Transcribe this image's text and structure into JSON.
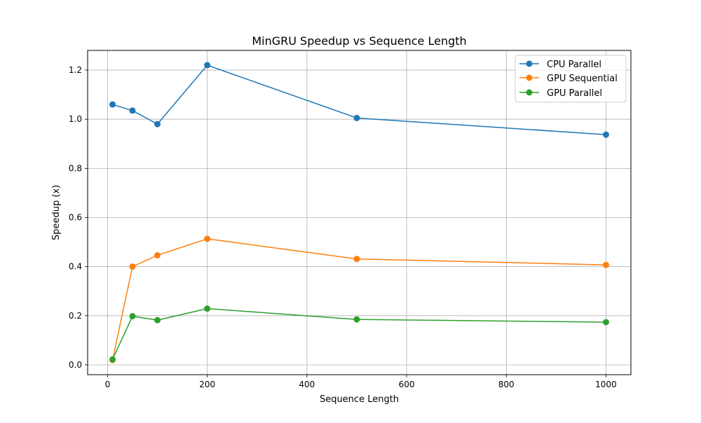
{
  "chart_data": {
    "type": "line",
    "title": "MinGRU Speedup vs Sequence Length",
    "xlabel": "Sequence Length",
    "ylabel": "Speedup (x)",
    "x": [
      10,
      50,
      100,
      200,
      500,
      1000
    ],
    "xlim": [
      -40,
      1050
    ],
    "ylim": [
      -0.04,
      1.28
    ],
    "xticks": [
      0,
      200,
      400,
      600,
      800,
      1000
    ],
    "xtick_labels": [
      "0",
      "200",
      "400",
      "600",
      "800",
      "1000"
    ],
    "yticks": [
      0.0,
      0.2,
      0.4,
      0.6,
      0.8,
      1.0,
      1.2
    ],
    "ytick_labels": [
      "0.0",
      "0.2",
      "0.4",
      "0.6",
      "0.8",
      "1.0",
      "1.2"
    ],
    "grid": true,
    "legend_position": "top-right",
    "series": [
      {
        "name": "CPU Parallel",
        "color": "#1f77b4",
        "marker": "circle",
        "values": [
          1.06,
          1.035,
          0.98,
          1.22,
          1.005,
          0.937
        ]
      },
      {
        "name": "GPU Sequential",
        "color": "#ff7f0e",
        "marker": "circle",
        "values": [
          0.02,
          0.4,
          0.446,
          0.513,
          0.431,
          0.407
        ]
      },
      {
        "name": "GPU Parallel",
        "color": "#2ca02c",
        "marker": "circle",
        "values": [
          0.022,
          0.198,
          0.182,
          0.229,
          0.185,
          0.174
        ]
      }
    ]
  }
}
